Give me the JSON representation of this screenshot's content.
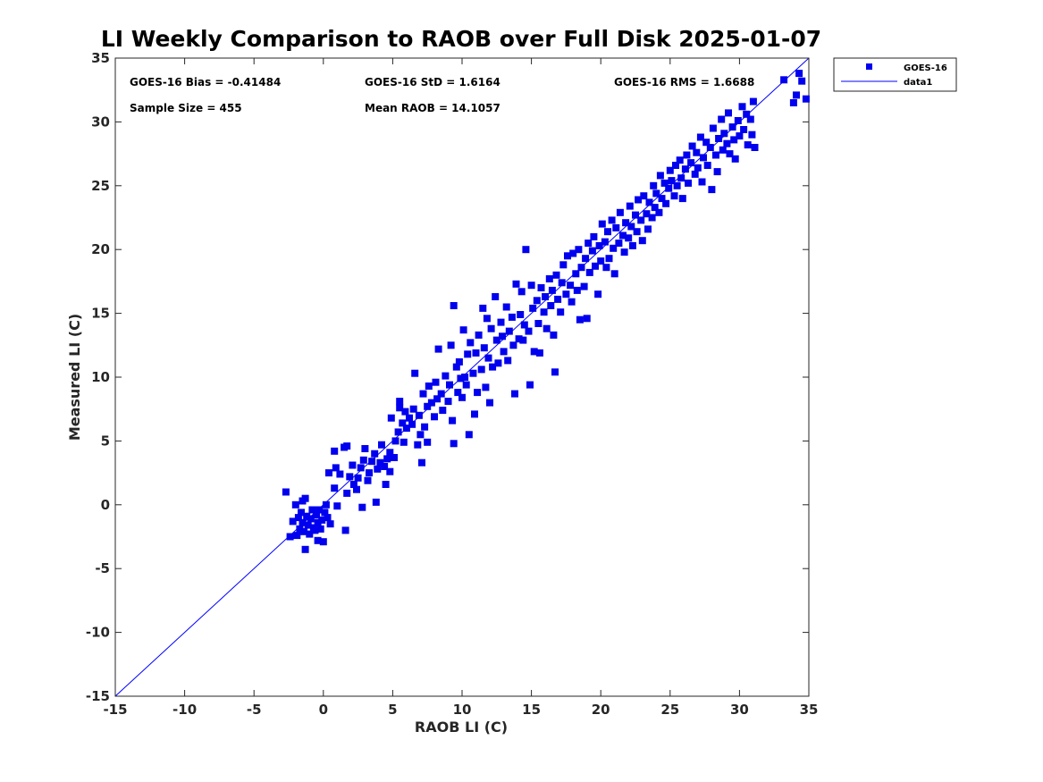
{
  "chart_data": {
    "type": "scatter",
    "title": "LI Weekly Comparison to RAOB over Full Disk 2025-01-07",
    "xlabel": "RAOB LI (C)",
    "ylabel": "Measured LI (C)",
    "xlim": [
      -15,
      35
    ],
    "ylim": [
      -15,
      35
    ],
    "xticks": [
      "-15",
      "-10",
      "-5",
      "0",
      "5",
      "10",
      "15",
      "20",
      "25",
      "30",
      "35"
    ],
    "yticks": [
      "-15",
      "-10",
      "-5",
      "0",
      "5",
      "10",
      "15",
      "20",
      "25",
      "30",
      "35"
    ],
    "grid": false,
    "legend_position": "outside top-right",
    "marker_color": "#0000ee",
    "line_color": "#0000ff",
    "stats": {
      "bias": "GOES-16 Bias = -0.41484",
      "std": "GOES-16 StD = 1.6164",
      "rms": "GOES-16 RMS = 1.6688",
      "sample_size": "Sample Size = 455",
      "mean_raob": "Mean RAOB = 14.1057"
    },
    "series": [
      {
        "name": "GOES-16",
        "kind": "scatter",
        "points": [
          [
            -2.7,
            1.0
          ],
          [
            -2.4,
            -2.5
          ],
          [
            -2.2,
            -1.3
          ],
          [
            -2.0,
            0.0
          ],
          [
            -1.9,
            -2.4
          ],
          [
            -1.8,
            -1.0
          ],
          [
            -1.7,
            -1.9
          ],
          [
            -1.6,
            -0.6
          ],
          [
            -1.5,
            0.3
          ],
          [
            -1.5,
            -1.4
          ],
          [
            -1.4,
            -2.1
          ],
          [
            -1.3,
            -3.5
          ],
          [
            -1.3,
            0.5
          ],
          [
            -1.2,
            -0.9
          ],
          [
            -1.1,
            -1.6
          ],
          [
            -1.0,
            -2.3
          ],
          [
            -0.9,
            -1.1
          ],
          [
            -0.8,
            -0.4
          ],
          [
            -0.7,
            -1.8
          ],
          [
            -0.6,
            -2.0
          ],
          [
            -0.5,
            -0.8
          ],
          [
            -0.4,
            -1.4
          ],
          [
            -0.4,
            -2.8
          ],
          [
            -0.3,
            -0.4
          ],
          [
            -0.2,
            -1.9
          ],
          [
            -0.1,
            -1.2
          ],
          [
            0.0,
            -2.9
          ],
          [
            0.1,
            -0.6
          ],
          [
            0.2,
            0.0
          ],
          [
            0.3,
            -1.0
          ],
          [
            0.4,
            2.5
          ],
          [
            0.5,
            -1.5
          ],
          [
            0.8,
            1.3
          ],
          [
            0.9,
            2.9
          ],
          [
            0.8,
            4.2
          ],
          [
            1.0,
            -0.1
          ],
          [
            1.2,
            2.4
          ],
          [
            1.5,
            4.5
          ],
          [
            1.6,
            -2.0
          ],
          [
            1.7,
            4.6
          ],
          [
            1.7,
            0.9
          ],
          [
            1.9,
            2.2
          ],
          [
            2.1,
            3.1
          ],
          [
            2.2,
            1.6
          ],
          [
            2.4,
            1.2
          ],
          [
            2.5,
            2.1
          ],
          [
            2.7,
            2.9
          ],
          [
            2.9,
            3.5
          ],
          [
            3.0,
            4.4
          ],
          [
            2.8,
            -0.2
          ],
          [
            3.2,
            1.9
          ],
          [
            3.3,
            2.5
          ],
          [
            3.5,
            3.4
          ],
          [
            3.7,
            4.0
          ],
          [
            3.8,
            0.2
          ],
          [
            3.9,
            2.8
          ],
          [
            4.1,
            3.3
          ],
          [
            4.2,
            4.7
          ],
          [
            4.4,
            3.0
          ],
          [
            4.5,
            1.6
          ],
          [
            4.6,
            3.6
          ],
          [
            4.8,
            2.6
          ],
          [
            4.8,
            4.1
          ],
          [
            4.9,
            6.8
          ],
          [
            5.1,
            3.7
          ],
          [
            5.2,
            5.0
          ],
          [
            5.4,
            5.7
          ],
          [
            5.5,
            7.6
          ],
          [
            5.5,
            8.1
          ],
          [
            5.7,
            6.4
          ],
          [
            5.8,
            4.9
          ],
          [
            5.9,
            7.3
          ],
          [
            6.0,
            6.0
          ],
          [
            6.2,
            6.8
          ],
          [
            6.4,
            6.3
          ],
          [
            6.5,
            7.5
          ],
          [
            6.6,
            10.3
          ],
          [
            6.8,
            4.7
          ],
          [
            6.9,
            7.0
          ],
          [
            7.0,
            5.5
          ],
          [
            7.1,
            3.3
          ],
          [
            7.2,
            8.7
          ],
          [
            7.3,
            6.1
          ],
          [
            7.5,
            7.7
          ],
          [
            7.5,
            4.9
          ],
          [
            7.6,
            9.3
          ],
          [
            7.8,
            8.0
          ],
          [
            8.0,
            6.9
          ],
          [
            8.1,
            9.6
          ],
          [
            8.2,
            8.3
          ],
          [
            8.3,
            12.2
          ],
          [
            8.5,
            8.7
          ],
          [
            8.6,
            7.4
          ],
          [
            8.8,
            10.1
          ],
          [
            9.0,
            8.1
          ],
          [
            9.1,
            9.4
          ],
          [
            9.2,
            12.5
          ],
          [
            9.3,
            6.6
          ],
          [
            9.4,
            4.8
          ],
          [
            9.4,
            15.6
          ],
          [
            9.6,
            10.8
          ],
          [
            9.7,
            8.8
          ],
          [
            9.8,
            11.2
          ],
          [
            9.9,
            9.9
          ],
          [
            10.0,
            8.4
          ],
          [
            10.1,
            13.7
          ],
          [
            10.2,
            10.0
          ],
          [
            10.3,
            9.4
          ],
          [
            10.4,
            11.8
          ],
          [
            10.5,
            5.5
          ],
          [
            10.6,
            12.7
          ],
          [
            10.8,
            10.3
          ],
          [
            10.9,
            7.1
          ],
          [
            11.0,
            11.9
          ],
          [
            11.1,
            8.8
          ],
          [
            11.2,
            13.3
          ],
          [
            11.4,
            10.6
          ],
          [
            11.5,
            15.4
          ],
          [
            11.6,
            12.3
          ],
          [
            11.7,
            9.2
          ],
          [
            11.8,
            14.6
          ],
          [
            11.9,
            11.5
          ],
          [
            12.0,
            8.0
          ],
          [
            12.1,
            13.8
          ],
          [
            12.2,
            10.8
          ],
          [
            12.4,
            16.3
          ],
          [
            12.5,
            12.9
          ],
          [
            12.6,
            11.1
          ],
          [
            12.8,
            14.3
          ],
          [
            12.9,
            13.2
          ],
          [
            13.0,
            12.0
          ],
          [
            13.2,
            15.5
          ],
          [
            13.3,
            11.3
          ],
          [
            13.4,
            13.6
          ],
          [
            13.6,
            14.7
          ],
          [
            13.7,
            12.5
          ],
          [
            13.8,
            8.7
          ],
          [
            13.9,
            17.3
          ],
          [
            14.1,
            13.0
          ],
          [
            14.2,
            14.9
          ],
          [
            14.3,
            16.7
          ],
          [
            14.4,
            12.9
          ],
          [
            14.5,
            14.1
          ],
          [
            14.6,
            20.0
          ],
          [
            14.8,
            13.6
          ],
          [
            14.9,
            9.4
          ],
          [
            15.0,
            17.2
          ],
          [
            15.1,
            15.4
          ],
          [
            15.2,
            12.0
          ],
          [
            15.4,
            16.0
          ],
          [
            15.5,
            14.2
          ],
          [
            15.6,
            11.9
          ],
          [
            15.7,
            17.0
          ],
          [
            15.9,
            15.1
          ],
          [
            16.0,
            16.3
          ],
          [
            16.1,
            13.8
          ],
          [
            16.3,
            17.7
          ],
          [
            16.4,
            15.6
          ],
          [
            16.5,
            16.8
          ],
          [
            16.6,
            13.3
          ],
          [
            16.7,
            10.4
          ],
          [
            16.8,
            18.0
          ],
          [
            16.9,
            16.1
          ],
          [
            17.1,
            15.1
          ],
          [
            17.2,
            17.4
          ],
          [
            17.3,
            18.8
          ],
          [
            17.5,
            16.5
          ],
          [
            17.6,
            19.5
          ],
          [
            17.8,
            17.2
          ],
          [
            17.9,
            15.9
          ],
          [
            18.0,
            19.7
          ],
          [
            18.2,
            18.1
          ],
          [
            18.3,
            16.8
          ],
          [
            18.4,
            20.0
          ],
          [
            18.5,
            14.5
          ],
          [
            18.6,
            18.6
          ],
          [
            18.8,
            17.1
          ],
          [
            18.9,
            19.3
          ],
          [
            19.0,
            14.6
          ],
          [
            19.1,
            20.5
          ],
          [
            19.2,
            18.2
          ],
          [
            19.4,
            19.9
          ],
          [
            19.5,
            21.0
          ],
          [
            19.6,
            18.7
          ],
          [
            19.8,
            16.5
          ],
          [
            19.9,
            20.3
          ],
          [
            20.0,
            19.1
          ],
          [
            20.1,
            22.0
          ],
          [
            20.3,
            20.6
          ],
          [
            20.4,
            18.6
          ],
          [
            20.5,
            21.4
          ],
          [
            20.6,
            19.3
          ],
          [
            20.8,
            22.3
          ],
          [
            20.9,
            20.1
          ],
          [
            21.0,
            18.1
          ],
          [
            21.1,
            21.7
          ],
          [
            21.3,
            20.5
          ],
          [
            21.4,
            22.9
          ],
          [
            21.6,
            21.1
          ],
          [
            21.7,
            19.8
          ],
          [
            21.8,
            22.1
          ],
          [
            22.0,
            20.9
          ],
          [
            22.1,
            23.4
          ],
          [
            22.2,
            21.8
          ],
          [
            22.3,
            20.3
          ],
          [
            22.5,
            22.7
          ],
          [
            22.6,
            21.4
          ],
          [
            22.7,
            23.9
          ],
          [
            22.9,
            22.3
          ],
          [
            23.0,
            20.7
          ],
          [
            23.1,
            24.2
          ],
          [
            23.3,
            22.8
          ],
          [
            23.4,
            21.6
          ],
          [
            23.5,
            23.7
          ],
          [
            23.7,
            22.5
          ],
          [
            23.8,
            25.0
          ],
          [
            23.9,
            23.3
          ],
          [
            24.0,
            24.4
          ],
          [
            24.2,
            22.9
          ],
          [
            24.3,
            25.8
          ],
          [
            24.4,
            24.0
          ],
          [
            24.6,
            25.2
          ],
          [
            24.7,
            23.6
          ],
          [
            24.9,
            24.8
          ],
          [
            25.0,
            26.2
          ],
          [
            25.1,
            25.4
          ],
          [
            25.3,
            24.2
          ],
          [
            25.4,
            26.6
          ],
          [
            25.5,
            25.0
          ],
          [
            25.7,
            27.0
          ],
          [
            25.8,
            25.6
          ],
          [
            25.9,
            24.0
          ],
          [
            26.1,
            26.3
          ],
          [
            26.2,
            27.4
          ],
          [
            26.3,
            25.2
          ],
          [
            26.5,
            26.8
          ],
          [
            26.6,
            28.1
          ],
          [
            26.8,
            25.9
          ],
          [
            26.9,
            27.6
          ],
          [
            27.0,
            26.4
          ],
          [
            27.2,
            28.8
          ],
          [
            27.3,
            25.3
          ],
          [
            27.4,
            27.2
          ],
          [
            27.6,
            28.4
          ],
          [
            27.7,
            26.6
          ],
          [
            27.9,
            28.0
          ],
          [
            28.0,
            24.7
          ],
          [
            28.1,
            29.5
          ],
          [
            28.3,
            27.4
          ],
          [
            28.4,
            26.1
          ],
          [
            28.5,
            28.7
          ],
          [
            28.7,
            30.2
          ],
          [
            28.8,
            27.8
          ],
          [
            28.9,
            29.1
          ],
          [
            29.1,
            28.3
          ],
          [
            29.2,
            30.7
          ],
          [
            29.3,
            27.5
          ],
          [
            29.5,
            29.6
          ],
          [
            29.6,
            28.6
          ],
          [
            29.7,
            27.1
          ],
          [
            29.9,
            30.1
          ],
          [
            30.0,
            28.9
          ],
          [
            30.2,
            31.2
          ],
          [
            30.3,
            29.4
          ],
          [
            30.5,
            30.6
          ],
          [
            30.6,
            28.2
          ],
          [
            30.8,
            30.2
          ],
          [
            30.9,
            29.0
          ],
          [
            31.0,
            31.6
          ],
          [
            31.1,
            28.0
          ],
          [
            33.2,
            33.3
          ],
          [
            33.9,
            31.5
          ],
          [
            34.1,
            32.1
          ],
          [
            34.3,
            33.8
          ],
          [
            34.5,
            33.2
          ],
          [
            34.8,
            31.8
          ]
        ]
      },
      {
        "name": "data1",
        "kind": "line",
        "x": [
          -15,
          35
        ],
        "y": [
          -15,
          35
        ]
      }
    ]
  }
}
